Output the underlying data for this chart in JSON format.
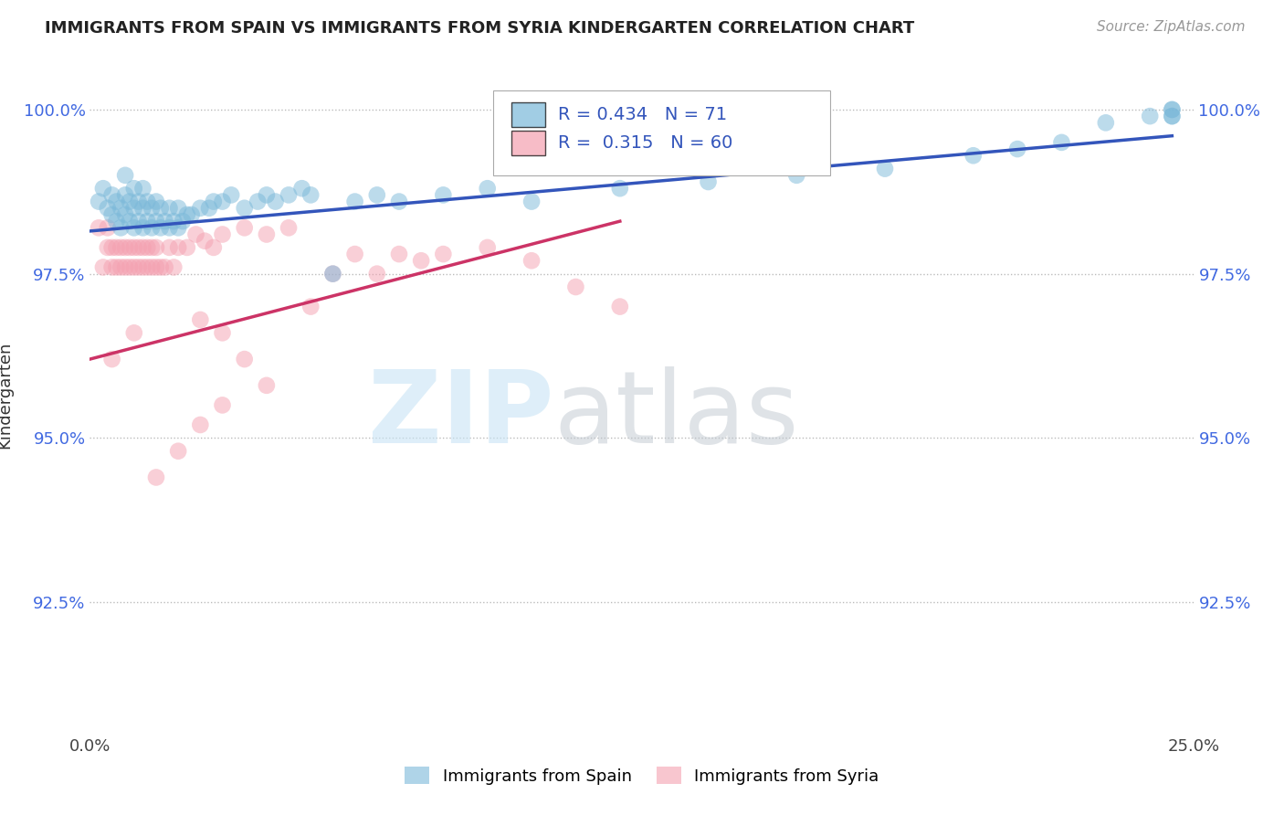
{
  "title": "IMMIGRANTS FROM SPAIN VS IMMIGRANTS FROM SYRIA KINDERGARTEN CORRELATION CHART",
  "source": "Source: ZipAtlas.com",
  "ylabel": "Kindergarten",
  "xlim": [
    0.0,
    0.25
  ],
  "ylim": [
    0.905,
    1.008
  ],
  "xticks": [
    0.0,
    0.05,
    0.1,
    0.15,
    0.2,
    0.25
  ],
  "xticklabels": [
    "0.0%",
    "",
    "",
    "",
    "",
    "25.0%"
  ],
  "yticks": [
    0.925,
    0.95,
    0.975,
    1.0
  ],
  "yticklabels": [
    "92.5%",
    "95.0%",
    "97.5%",
    "100.0%"
  ],
  "spain_color": "#7ab8d9",
  "syria_color": "#f4a0b0",
  "spain_R": 0.434,
  "spain_N": 71,
  "syria_R": 0.315,
  "syria_N": 60,
  "spain_line_color": "#3355bb",
  "syria_line_color": "#cc3366",
  "legend_label_spain": "Immigrants from Spain",
  "legend_label_syria": "Immigrants from Syria",
  "spain_x": [
    0.002,
    0.003,
    0.004,
    0.005,
    0.005,
    0.006,
    0.006,
    0.007,
    0.007,
    0.008,
    0.008,
    0.008,
    0.009,
    0.009,
    0.01,
    0.01,
    0.01,
    0.011,
    0.011,
    0.012,
    0.012,
    0.012,
    0.013,
    0.013,
    0.014,
    0.014,
    0.015,
    0.015,
    0.016,
    0.016,
    0.017,
    0.018,
    0.018,
    0.019,
    0.02,
    0.02,
    0.021,
    0.022,
    0.023,
    0.025,
    0.027,
    0.028,
    0.03,
    0.032,
    0.035,
    0.038,
    0.04,
    0.042,
    0.045,
    0.048,
    0.05,
    0.055,
    0.06,
    0.065,
    0.07,
    0.08,
    0.09,
    0.1,
    0.12,
    0.14,
    0.16,
    0.18,
    0.2,
    0.21,
    0.22,
    0.23,
    0.24,
    0.245,
    0.245,
    0.245,
    0.245
  ],
  "spain_y": [
    0.986,
    0.988,
    0.985,
    0.984,
    0.987,
    0.983,
    0.986,
    0.982,
    0.985,
    0.984,
    0.987,
    0.99,
    0.983,
    0.986,
    0.982,
    0.985,
    0.988,
    0.983,
    0.986,
    0.982,
    0.985,
    0.988,
    0.983,
    0.986,
    0.982,
    0.985,
    0.983,
    0.986,
    0.982,
    0.985,
    0.983,
    0.982,
    0.985,
    0.983,
    0.982,
    0.985,
    0.983,
    0.984,
    0.984,
    0.985,
    0.985,
    0.986,
    0.986,
    0.987,
    0.985,
    0.986,
    0.987,
    0.986,
    0.987,
    0.988,
    0.987,
    0.975,
    0.986,
    0.987,
    0.986,
    0.987,
    0.988,
    0.986,
    0.988,
    0.989,
    0.99,
    0.991,
    0.993,
    0.994,
    0.995,
    0.998,
    0.999,
    1.0,
    0.999,
    1.0,
    0.999
  ],
  "syria_x": [
    0.002,
    0.003,
    0.004,
    0.004,
    0.005,
    0.005,
    0.006,
    0.006,
    0.007,
    0.007,
    0.008,
    0.008,
    0.009,
    0.009,
    0.01,
    0.01,
    0.011,
    0.011,
    0.012,
    0.012,
    0.013,
    0.013,
    0.014,
    0.014,
    0.015,
    0.015,
    0.016,
    0.017,
    0.018,
    0.019,
    0.02,
    0.022,
    0.024,
    0.026,
    0.028,
    0.03,
    0.035,
    0.04,
    0.045,
    0.05,
    0.055,
    0.06,
    0.065,
    0.07,
    0.075,
    0.08,
    0.09,
    0.1,
    0.11,
    0.12,
    0.025,
    0.03,
    0.035,
    0.04,
    0.03,
    0.025,
    0.02,
    0.015,
    0.01,
    0.005
  ],
  "syria_y": [
    0.982,
    0.976,
    0.979,
    0.982,
    0.976,
    0.979,
    0.976,
    0.979,
    0.976,
    0.979,
    0.976,
    0.979,
    0.976,
    0.979,
    0.976,
    0.979,
    0.976,
    0.979,
    0.976,
    0.979,
    0.976,
    0.979,
    0.976,
    0.979,
    0.976,
    0.979,
    0.976,
    0.976,
    0.979,
    0.976,
    0.979,
    0.979,
    0.981,
    0.98,
    0.979,
    0.981,
    0.982,
    0.981,
    0.982,
    0.97,
    0.975,
    0.978,
    0.975,
    0.978,
    0.977,
    0.978,
    0.979,
    0.977,
    0.973,
    0.97,
    0.968,
    0.966,
    0.962,
    0.958,
    0.955,
    0.952,
    0.948,
    0.944,
    0.966,
    0.962
  ]
}
